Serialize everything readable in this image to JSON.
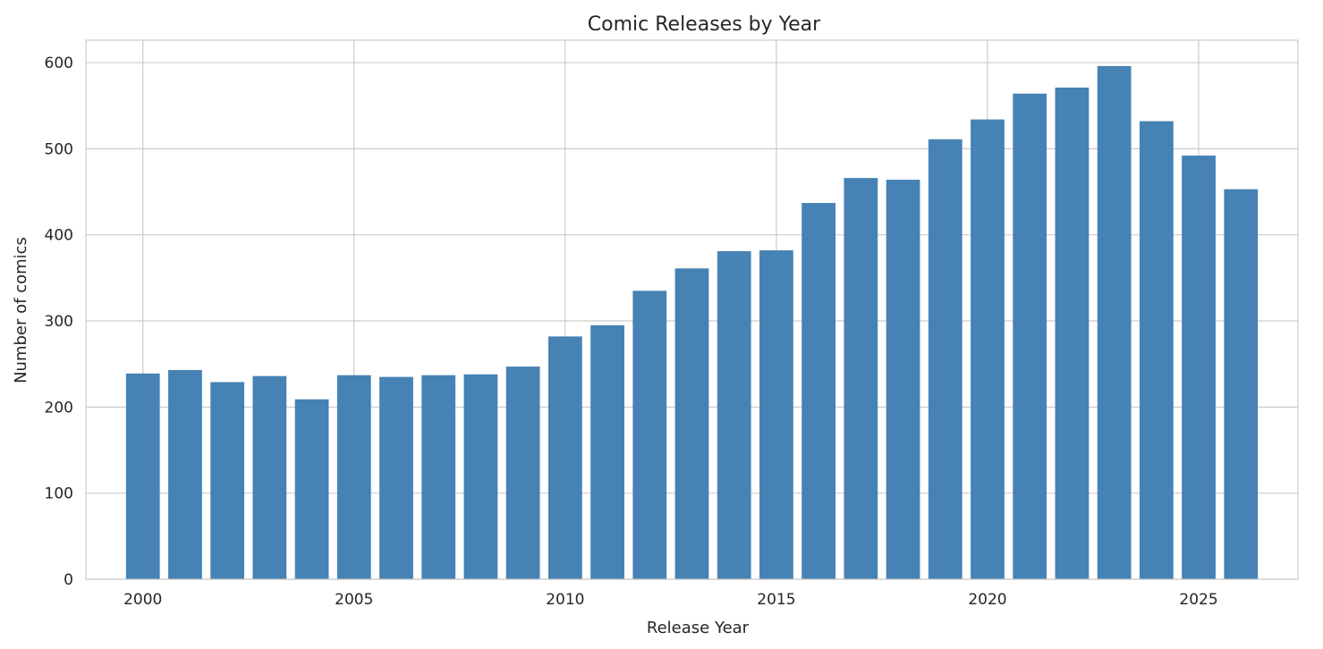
{
  "chart_data": {
    "type": "bar",
    "title": "Comic Releases by Year",
    "xlabel": "Release Year",
    "ylabel": "Number of comics",
    "x": [
      2000,
      2001,
      2002,
      2003,
      2004,
      2005,
      2006,
      2007,
      2008,
      2009,
      2010,
      2011,
      2012,
      2013,
      2014,
      2015,
      2016,
      2017,
      2018,
      2019,
      2020,
      2021,
      2022,
      2023,
      2024,
      2025,
      2026
    ],
    "values": [
      239,
      243,
      229,
      236,
      209,
      237,
      235,
      237,
      238,
      247,
      282,
      295,
      335,
      361,
      381,
      382,
      437,
      466,
      464,
      511,
      534,
      564,
      571,
      596,
      532,
      492,
      453
    ],
    "xlim": [
      1998.65,
      2027.35
    ],
    "ylim": [
      0,
      626
    ],
    "xticks": [
      "2000",
      "2005",
      "2010",
      "2015",
      "2020",
      "2025"
    ],
    "yticks": [
      "0",
      "100",
      "200",
      "300",
      "400",
      "500",
      "600"
    ],
    "grid": true,
    "legend": "none",
    "bar_color": "#4682b4",
    "grid_color": "#cccccc",
    "axes_edge_color": "#cccccc"
  }
}
